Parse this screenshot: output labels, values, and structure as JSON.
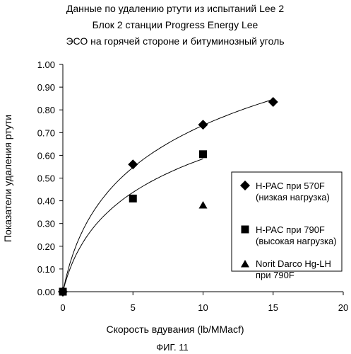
{
  "chart_data": {
    "type": "scatter",
    "title_lines": [
      "Данные по удалению ртути из испытаний Lee 2",
      "Блок 2 станции Progress Energy Lee",
      "ЭСО на горячей стороне и битуминозный уголь"
    ],
    "xlabel": "Скорость вдувания (lb/MMacf)",
    "ylabel": "Показатели удаления ртути",
    "xlim": [
      0,
      20
    ],
    "ylim": [
      0,
      1
    ],
    "xticks": [
      0,
      5,
      10,
      15,
      20
    ],
    "xtick_labels": [
      "0",
      "5",
      "10",
      "15",
      "20"
    ],
    "yticks": [
      0,
      0.1,
      0.2,
      0.3,
      0.4,
      0.5,
      0.6,
      0.7,
      0.8,
      0.9,
      1.0
    ],
    "ytick_labels": [
      "0.00",
      "0.10",
      "0.20",
      "0.30",
      "0.40",
      "0.50",
      "0.60",
      "0.70",
      "0.80",
      "0.90",
      "1.00"
    ],
    "grid": false,
    "legend_position": "right",
    "series": [
      {
        "name_lines": [
          "H-PAC при 570F",
          "(низкая нагрузка)"
        ],
        "marker": "diamond",
        "color": "#000000",
        "trendline": true,
        "points": [
          {
            "x": 0,
            "y": 0.0
          },
          {
            "x": 5,
            "y": 0.56
          },
          {
            "x": 10,
            "y": 0.735
          },
          {
            "x": 15,
            "y": 0.835
          }
        ]
      },
      {
        "name_lines": [
          "H-PAC при 790F",
          "(высокая нагрузка)"
        ],
        "marker": "square",
        "color": "#000000",
        "trendline": true,
        "points": [
          {
            "x": 0,
            "y": 0.0
          },
          {
            "x": 5,
            "y": 0.41
          },
          {
            "x": 10,
            "y": 0.605
          }
        ]
      },
      {
        "name_lines": [
          "Norit Darco Hg-LH",
          "при 790F"
        ],
        "marker": "triangle",
        "color": "#000000",
        "trendline": false,
        "points": [
          {
            "x": 10,
            "y": 0.38
          }
        ]
      }
    ]
  },
  "figure_caption": "ФИГ. 11"
}
